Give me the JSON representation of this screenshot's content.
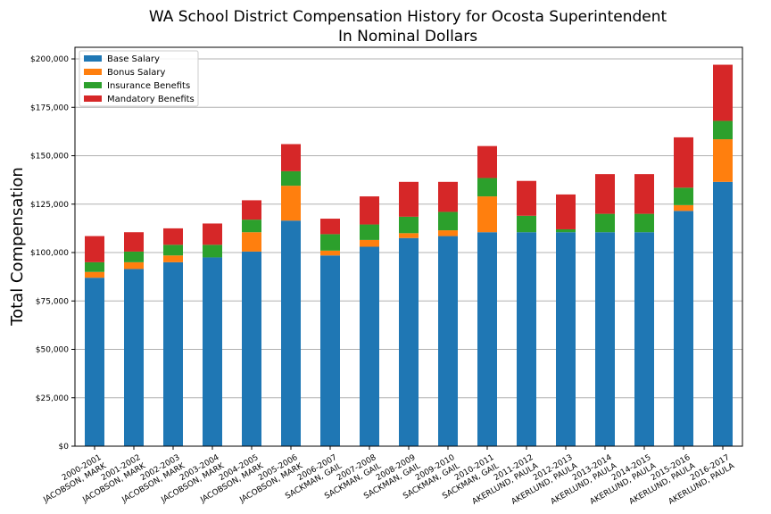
{
  "chart_data": {
    "type": "bar",
    "stacked": true,
    "title": "WA School District Compensation History for Ocosta Superintendent",
    "subtitle": "In Nominal Dollars",
    "xlabel": "",
    "ylabel": "Total Compensation",
    "ylim": [
      0,
      206000
    ],
    "yticks": [
      0,
      25000,
      50000,
      75000,
      100000,
      125000,
      150000,
      175000,
      200000
    ],
    "ytick_labels": [
      "$0",
      "$25,000",
      "$50,000",
      "$75,000",
      "$100,000",
      "$125,000",
      "$150,000",
      "$175,000",
      "$200,000"
    ],
    "grid": "horizontal",
    "legend_position": "top-left",
    "categories": [
      [
        "2000-2001",
        "JACOBSON, MARK"
      ],
      [
        "2001-2002",
        "JACOBSON, MARK"
      ],
      [
        "2002-2003",
        "JACOBSON, MARK"
      ],
      [
        "2003-2004",
        "JACOBSON, MARK"
      ],
      [
        "2004-2005",
        "JACOBSON, MARK"
      ],
      [
        "2005-2006",
        "JACOBSON, MARK"
      ],
      [
        "2006-2007",
        "SACKMAN, GAIL"
      ],
      [
        "2007-2008",
        "SACKMAN, GAIL"
      ],
      [
        "2008-2009",
        "SACKMAN, GAIL"
      ],
      [
        "2009-2010",
        "SACKMAN, GAIL"
      ],
      [
        "2010-2011",
        "SACKMAN, GAIL"
      ],
      [
        "2011-2012",
        "AKERLUND, PAULA"
      ],
      [
        "2012-2013",
        "AKERLUND, PAULA"
      ],
      [
        "2013-2014",
        "AKERLUND, PAULA"
      ],
      [
        "2014-2015",
        "AKERLUND, PAULA"
      ],
      [
        "2015-2016",
        "AKERLUND, PAULA"
      ],
      [
        "2016-2017",
        "AKERLUND, PAULA"
      ]
    ],
    "series": [
      {
        "name": "Base Salary",
        "color": "#1f77b4",
        "values": [
          87000,
          91500,
          95000,
          97500,
          100500,
          116500,
          98500,
          103000,
          107500,
          108500,
          110500,
          110500,
          110500,
          110500,
          110500,
          121500,
          136500
        ]
      },
      {
        "name": "Bonus Salary",
        "color": "#ff7f0e",
        "values": [
          3000,
          3500,
          3500,
          0,
          10000,
          18000,
          2500,
          3500,
          2500,
          3000,
          18500,
          0,
          0,
          0,
          0,
          3000,
          22000
        ]
      },
      {
        "name": "Insurance Benefits",
        "color": "#2ca02c",
        "values": [
          5000,
          5500,
          5500,
          6500,
          6500,
          7500,
          8500,
          8000,
          8500,
          9500,
          9500,
          8500,
          1500,
          9500,
          9500,
          9000,
          9500
        ]
      },
      {
        "name": "Mandatory Benefits",
        "color": "#d62728",
        "values": [
          13500,
          10000,
          8500,
          11000,
          10000,
          14000,
          8000,
          14500,
          18000,
          15500,
          16500,
          18000,
          18000,
          20500,
          20500,
          26000,
          29000
        ]
      }
    ]
  }
}
